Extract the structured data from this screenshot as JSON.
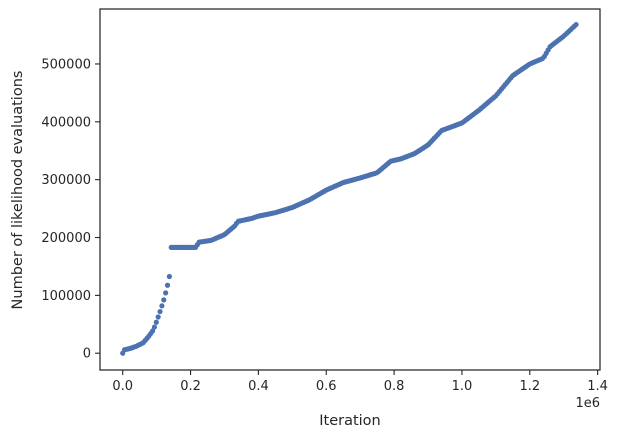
{
  "chart_data": {
    "type": "scatter",
    "xlabel": "Iteration",
    "ylabel": "Number of likelihood evaluations",
    "x_offset_label": "1e6",
    "x_scale": 1000000,
    "xlim": [
      -0.067,
      1.407
    ],
    "ylim": [
      -29000,
      595000
    ],
    "x_ticks": [
      0,
      0.2,
      0.4,
      0.6,
      0.8,
      1.0,
      1.2,
      1.4
    ],
    "x_tick_labels": [
      "0.0",
      "0.2",
      "0.4",
      "0.6",
      "0.8",
      "1.0",
      "1.2",
      "1.4"
    ],
    "y_ticks": [
      0,
      100000,
      200000,
      300000,
      400000,
      500000
    ],
    "y_tick_labels": [
      "0",
      "100000",
      "200000",
      "300000",
      "400000",
      "500000"
    ],
    "grid": false,
    "marker_color": "#4c72b0",
    "curve": [
      [
        0.0,
        0
      ],
      [
        0.005,
        6000
      ],
      [
        0.02,
        8000
      ],
      [
        0.04,
        12000
      ],
      [
        0.06,
        18000
      ],
      [
        0.075,
        28000
      ],
      [
        0.09,
        40000
      ],
      [
        0.1,
        55000
      ],
      [
        0.11,
        72000
      ],
      [
        0.12,
        90000
      ],
      [
        0.13,
        112000
      ],
      [
        0.142,
        145000
      ],
      [
        0.143,
        183000
      ],
      [
        0.215,
        183000
      ],
      [
        0.225,
        192000
      ],
      [
        0.26,
        195000
      ],
      [
        0.3,
        205000
      ],
      [
        0.33,
        220000
      ],
      [
        0.34,
        228000
      ],
      [
        0.38,
        233000
      ],
      [
        0.4,
        237000
      ],
      [
        0.45,
        243000
      ],
      [
        0.5,
        252000
      ],
      [
        0.55,
        265000
      ],
      [
        0.6,
        282000
      ],
      [
        0.65,
        295000
      ],
      [
        0.7,
        303000
      ],
      [
        0.75,
        312000
      ],
      [
        0.79,
        332000
      ],
      [
        0.82,
        336000
      ],
      [
        0.86,
        345000
      ],
      [
        0.9,
        360000
      ],
      [
        0.94,
        385000
      ],
      [
        1.0,
        398000
      ],
      [
        1.05,
        420000
      ],
      [
        1.1,
        445000
      ],
      [
        1.15,
        480000
      ],
      [
        1.2,
        500000
      ],
      [
        1.24,
        510000
      ],
      [
        1.26,
        530000
      ],
      [
        1.3,
        548000
      ],
      [
        1.34,
        570000
      ]
    ]
  }
}
